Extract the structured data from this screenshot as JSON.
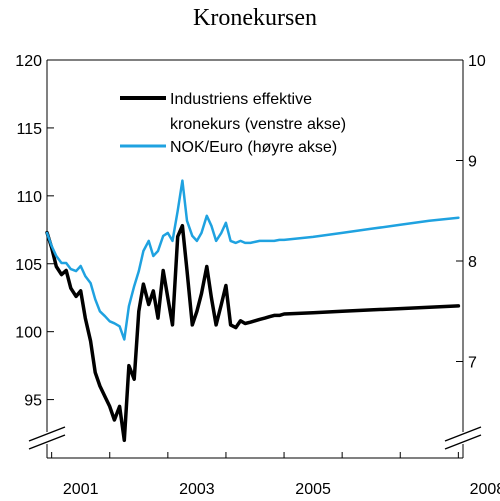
{
  "chart_data": {
    "type": "line",
    "title": "Kronekursen",
    "x_ticks": [
      "2001",
      "2003",
      "2005",
      "2008"
    ],
    "xlim": [
      2000.92,
      2008.08
    ],
    "left_axis": {
      "ticks": [
        95,
        100,
        105,
        110,
        115,
        120
      ],
      "ylim": [
        90.7,
        120
      ]
    },
    "right_axis": {
      "ticks": [
        7,
        8,
        9,
        10
      ],
      "ylim": [
        6.04,
        10
      ]
    },
    "grid": false,
    "legend_position": "top-left",
    "series": [
      {
        "name": "Industriens effektive kronekurs (venstre akse)",
        "axis": "left",
        "color": "#000000",
        "x": [
          2000.92,
          2001.0,
          2001.08,
          2001.17,
          2001.25,
          2001.33,
          2001.42,
          2001.5,
          2001.58,
          2001.67,
          2001.75,
          2001.83,
          2001.92,
          2002.0,
          2002.08,
          2002.17,
          2002.25,
          2002.33,
          2002.42,
          2002.5,
          2002.58,
          2002.67,
          2002.75,
          2002.83,
          2002.92,
          2003.0,
          2003.08,
          2003.17,
          2003.25,
          2003.33,
          2003.42,
          2003.5,
          2003.58,
          2003.67,
          2003.75,
          2003.83,
          2003.92,
          2004.0,
          2004.08,
          2004.17,
          2004.25,
          2004.33,
          2004.42,
          2004.5,
          2004.58,
          2004.67,
          2004.75,
          2004.83,
          2004.92,
          2005.0,
          2005.5,
          2006.0,
          2006.5,
          2007.0,
          2007.5,
          2008.0
        ],
        "values": [
          107.3,
          106.2,
          104.8,
          104.2,
          104.5,
          103.2,
          102.6,
          103.0,
          101.0,
          99.3,
          97.0,
          96.0,
          95.2,
          94.5,
          93.5,
          94.5,
          92.0,
          97.5,
          96.5,
          101.5,
          103.5,
          102.0,
          103.0,
          101.0,
          104.5,
          102.5,
          100.5,
          107.0,
          107.8,
          104.5,
          100.5,
          101.5,
          102.8,
          104.8,
          102.5,
          100.5,
          102.0,
          103.4,
          100.5,
          100.3,
          100.8,
          100.6,
          100.7,
          100.8,
          100.9,
          101.0,
          101.1,
          101.2,
          101.2,
          101.3,
          101.4,
          101.5,
          101.6,
          101.7,
          101.8,
          101.9
        ]
      },
      {
        "name": "NOK/Euro (høyre akse)",
        "axis": "right",
        "color": "#1fa2e0",
        "x": [
          2000.92,
          2001.0,
          2001.08,
          2001.17,
          2001.25,
          2001.33,
          2001.42,
          2001.5,
          2001.58,
          2001.67,
          2001.75,
          2001.83,
          2001.92,
          2002.0,
          2002.08,
          2002.17,
          2002.25,
          2002.33,
          2002.42,
          2002.5,
          2002.58,
          2002.67,
          2002.75,
          2002.83,
          2002.92,
          2003.0,
          2003.08,
          2003.17,
          2003.25,
          2003.33,
          2003.42,
          2003.5,
          2003.58,
          2003.67,
          2003.75,
          2003.83,
          2003.92,
          2004.0,
          2004.08,
          2004.17,
          2004.25,
          2004.33,
          2004.42,
          2004.5,
          2004.58,
          2004.67,
          2004.75,
          2004.83,
          2004.92,
          2005.0,
          2005.5,
          2006.0,
          2006.5,
          2007.0,
          2007.5,
          2008.0
        ],
        "values": [
          8.28,
          8.15,
          8.05,
          7.98,
          7.98,
          7.92,
          7.9,
          7.95,
          7.85,
          7.78,
          7.62,
          7.5,
          7.45,
          7.4,
          7.38,
          7.35,
          7.22,
          7.55,
          7.75,
          7.9,
          8.1,
          8.2,
          8.05,
          8.1,
          8.25,
          8.28,
          8.2,
          8.5,
          8.8,
          8.4,
          8.25,
          8.2,
          8.28,
          8.45,
          8.35,
          8.2,
          8.28,
          8.38,
          8.2,
          8.18,
          8.2,
          8.18,
          8.18,
          8.19,
          8.2,
          8.2,
          8.2,
          8.2,
          8.21,
          8.21,
          8.24,
          8.28,
          8.32,
          8.36,
          8.4,
          8.43
        ]
      }
    ]
  }
}
